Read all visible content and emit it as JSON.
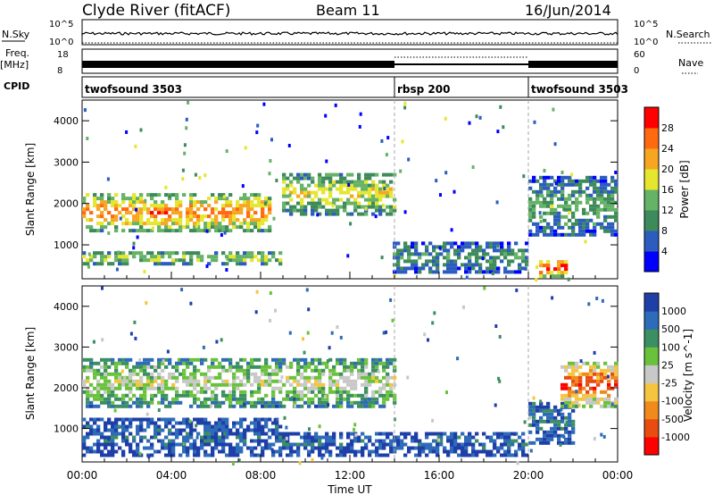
{
  "header": {
    "station": "Clyde River (fitACF)",
    "beam": "Beam 11",
    "date": "16/Jun/2014"
  },
  "status": {
    "nsky_label": "N.Sky",
    "nsky_ticks": [
      "10^5",
      "10^0"
    ],
    "nsearch_label": "N.Search",
    "nsearch_ticks": [
      "10^5",
      "10^0"
    ],
    "freq_label": "Freq.",
    "freq_unit": "[MHz]",
    "freq_ticks": [
      "18",
      "8"
    ],
    "nave_label": "Nave",
    "nave_ticks": [
      "60",
      "0"
    ],
    "cpid_label": "CPID",
    "cpid_segments": [
      {
        "name": "twofsound 3503",
        "start_hour": 0,
        "end_hour": 14
      },
      {
        "name": "rbsp 200",
        "start_hour": 14,
        "end_hour": 20
      },
      {
        "name": "twofsound 3503",
        "start_hour": 20,
        "end_hour": 24
      }
    ]
  },
  "chart_data": [
    {
      "type": "heatmap",
      "panel": "power",
      "ylabel": "Slant Range [km]",
      "yticks": [
        "1000",
        "2000",
        "3000",
        "4000"
      ],
      "ylim": [
        180,
        4500
      ],
      "xlim": [
        0,
        24
      ],
      "colorbar_label": "Power [dB]",
      "colorbar_ticks": [
        "4",
        "8",
        "12",
        "16",
        "20",
        "24",
        "28"
      ],
      "colors": [
        "#0000ff",
        "#2b5cbe",
        "#3d8a5a",
        "#66b266",
        "#e6e62e",
        "#f7a622",
        "#ff6a10",
        "#ff0000"
      ],
      "echo_bands": [
        {
          "t0": 0,
          "t1": 8.5,
          "r0": 1300,
          "r1": 2200,
          "level": 0.8
        },
        {
          "t0": 0,
          "t1": 9,
          "r0": 500,
          "r1": 800,
          "level": 0.55
        },
        {
          "t0": 9,
          "t1": 14,
          "r0": 1700,
          "r1": 2700,
          "level": 0.6
        },
        {
          "t0": 14,
          "t1": 20,
          "r0": 300,
          "r1": 1000,
          "level": 0.35
        },
        {
          "t0": 20,
          "t1": 24,
          "r0": 1200,
          "r1": 2600,
          "level": 0.4
        },
        {
          "t0": 20.5,
          "t1": 21.8,
          "r0": 200,
          "r1": 600,
          "level": 0.95
        }
      ]
    },
    {
      "type": "heatmap",
      "panel": "velocity",
      "ylabel": "Slant Range [km]",
      "yticks": [
        "1000",
        "2000",
        "3000",
        "4000"
      ],
      "ylim": [
        180,
        4500
      ],
      "xlim": [
        0,
        24
      ],
      "colorbar_label": "Velocity [m s^-1]",
      "colorbar_ticks": [
        "1000",
        "500",
        "100",
        "25",
        "-25",
        "-100",
        "-500",
        "-1000"
      ],
      "colors": [
        "#1f3fa8",
        "#2e6bb8",
        "#3b8f62",
        "#6ac23c",
        "#c8c8c8",
        "#f5c542",
        "#f08a1c",
        "#e84c10",
        "#ff0000"
      ],
      "echo_bands": [
        {
          "t0": 0,
          "t1": 14,
          "r0": 1500,
          "r1": 2700,
          "level": 0.5
        },
        {
          "t0": 0,
          "t1": 9,
          "r0": 300,
          "r1": 1200,
          "level": 0.15
        },
        {
          "t0": 9,
          "t1": 20,
          "r0": 300,
          "r1": 900,
          "level": 0.15
        },
        {
          "t0": 20,
          "t1": 22,
          "r0": 600,
          "r1": 1600,
          "level": 0.2
        },
        {
          "t0": 21.5,
          "t1": 24,
          "r0": 1500,
          "r1": 2600,
          "level": 0.9
        }
      ]
    }
  ],
  "xaxis": {
    "ticks": [
      "00:00",
      "04:00",
      "08:00",
      "12:00",
      "16:00",
      "20:00",
      "00:00"
    ],
    "label": "Time UT"
  }
}
